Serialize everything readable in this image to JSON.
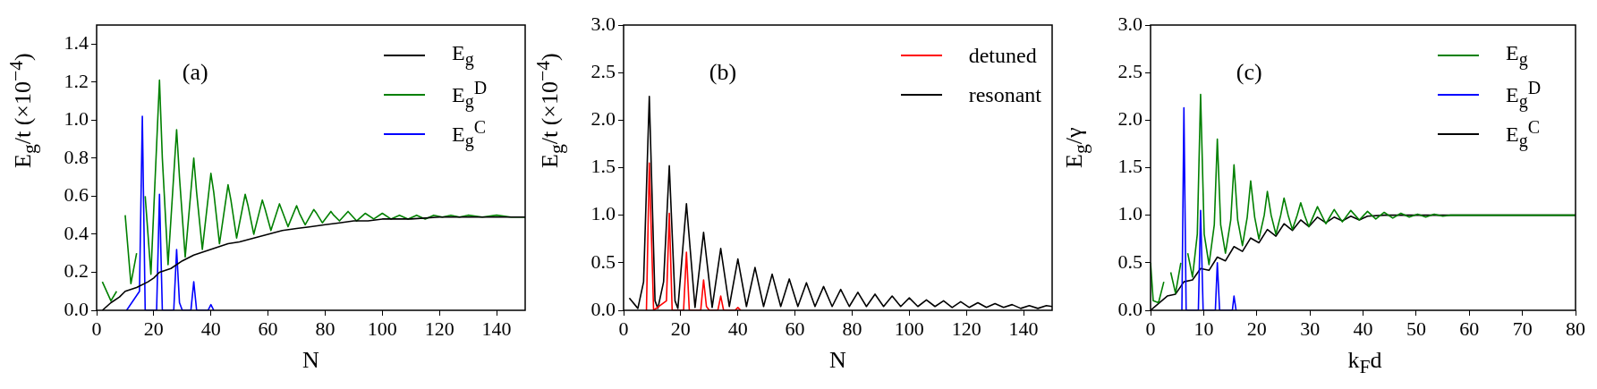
{
  "chart_data": [
    {
      "type": "line",
      "xlabel": "N",
      "ylabel": "E$_{g}$/t (×10$^{−4}$)",
      "xlim": [
        0,
        150
      ],
      "xticks": [
        0,
        20,
        40,
        60,
        80,
        100,
        120,
        140
      ],
      "ylim": [
        0,
        1.5
      ],
      "yticks": [
        {
          "value": 0,
          "label": "0.0"
        },
        {
          "value": 0.2,
          "label": "0.2"
        },
        {
          "value": 0.4,
          "label": "0.4"
        },
        {
          "value": 0.6,
          "label": "0.6"
        },
        {
          "value": 0.8,
          "label": "0.8"
        },
        {
          "value": 1,
          "label": "1.0"
        },
        {
          "value": 1.2,
          "label": "1.2"
        },
        {
          "value": 1.4,
          "label": "1.4"
        }
      ],
      "legend": "top right",
      "annotations": [
        "(a)"
      ],
      "series": [
        {
          "name": "E$_{g}$",
          "color": "#000000",
          "x": [
            2,
            5,
            8,
            10,
            14,
            18,
            20,
            22,
            26,
            30,
            34,
            38,
            42,
            46,
            50,
            55,
            60,
            65,
            70,
            75,
            80,
            85,
            90,
            95,
            100,
            110,
            120,
            130,
            140,
            150
          ],
          "values": [
            0,
            0.04,
            0.07,
            0.1,
            0.12,
            0.15,
            0.17,
            0.2,
            0.22,
            0.26,
            0.29,
            0.31,
            0.33,
            0.35,
            0.36,
            0.38,
            0.4,
            0.42,
            0.43,
            0.44,
            0.45,
            0.46,
            0.47,
            0.47,
            0.48,
            0.48,
            0.49,
            0.49,
            0.49,
            0.49
          ]
        },
        {
          "name": "E$_{g}$$^{D}$",
          "color": "#008000",
          "x": [
            2,
            5,
            7,
            9,
            10,
            12,
            14,
            16,
            17,
            19,
            22,
            23,
            25,
            28,
            29,
            31,
            34,
            35,
            37,
            40,
            41,
            43,
            46,
            47,
            49,
            52,
            53,
            55,
            58,
            59,
            61,
            64,
            65,
            67,
            70,
            71,
            73,
            76,
            77,
            79,
            82,
            83,
            85,
            88,
            91,
            94,
            97,
            100,
            103,
            106,
            109,
            112,
            115,
            118,
            121,
            124,
            127,
            130,
            135,
            140,
            145,
            150
          ],
          "values": [
            0.15,
            0.05,
            0.1,
            null,
            0.5,
            0.14,
            0.3,
            null,
            0.6,
            0.19,
            1.21,
            0.8,
            0.24,
            0.95,
            0.7,
            0.28,
            0.8,
            0.62,
            0.32,
            0.72,
            0.62,
            0.35,
            0.66,
            0.58,
            0.38,
            0.61,
            0.55,
            0.4,
            0.58,
            0.53,
            0.42,
            0.56,
            0.52,
            0.44,
            0.55,
            0.51,
            0.45,
            0.53,
            0.51,
            0.46,
            0.52,
            0.5,
            0.47,
            0.52,
            0.47,
            0.51,
            0.48,
            0.51,
            0.48,
            0.5,
            0.48,
            0.5,
            0.48,
            0.5,
            0.49,
            0.5,
            0.49,
            0.5,
            0.49,
            0.5,
            0.49,
            0.49
          ]
        },
        {
          "name": "E$_{g}$$^{C}$",
          "color": "#0000ff",
          "x": [
            10.5,
            15,
            16,
            17,
            21,
            22,
            23,
            27,
            28,
            29,
            30,
            33,
            34,
            35,
            39,
            40,
            41
          ],
          "values": [
            0,
            0.1,
            1.02,
            0,
            0,
            0.61,
            0,
            0,
            0.32,
            0.04,
            0,
            0,
            0.15,
            0,
            0,
            0.03,
            0
          ]
        }
      ]
    },
    {
      "type": "line",
      "xlabel": "N",
      "ylabel": "E$_{g}$/t (×10$^{−4}$)",
      "xlim": [
        0,
        150
      ],
      "xticks": [
        0,
        20,
        40,
        60,
        80,
        100,
        120,
        140
      ],
      "ylim": [
        0,
        3
      ],
      "yticks": [
        {
          "value": 0,
          "label": "0.0"
        },
        {
          "value": 0.5,
          "label": "0.5"
        },
        {
          "value": 1,
          "label": "1.0"
        },
        {
          "value": 1.5,
          "label": "1.5"
        },
        {
          "value": 2,
          "label": "2.0"
        },
        {
          "value": 2.5,
          "label": "2.5"
        },
        {
          "value": 3,
          "label": "3.0"
        }
      ],
      "legend": "top right",
      "annotations": [
        "(b)"
      ],
      "series": [
        {
          "name": "detuned",
          "color": "#ff0000",
          "x": [
            8,
            9,
            10.5,
            15,
            16,
            17,
            21,
            22,
            23,
            27,
            28,
            29,
            30,
            33,
            34,
            35,
            39,
            40,
            41
          ],
          "values": [
            0,
            1.55,
            0,
            0.1,
            1.02,
            0,
            0,
            0.61,
            0,
            0,
            0.32,
            0.04,
            0,
            0,
            0.15,
            0,
            0,
            0.03,
            0
          ]
        },
        {
          "name": "resonant",
          "color": "#000000",
          "x": [
            2,
            5,
            7,
            9,
            11,
            12,
            14,
            16,
            18,
            19,
            22,
            25,
            28,
            31,
            34,
            37,
            40,
            43,
            46,
            49,
            52,
            55,
            58,
            61,
            64,
            67,
            70,
            73,
            76,
            79,
            82,
            85,
            88,
            91,
            94,
            97,
            100,
            103,
            106,
            109,
            112,
            115,
            118,
            121,
            124,
            127,
            130,
            133,
            136,
            139,
            142,
            145,
            148,
            150
          ],
          "values": [
            0.13,
            0.02,
            0.3,
            2.25,
            0.1,
            0.02,
            0.3,
            1.52,
            0.1,
            0.02,
            1.12,
            0.03,
            0.82,
            0.03,
            0.65,
            0.04,
            0.54,
            0.04,
            0.45,
            0.04,
            0.38,
            0.04,
            0.33,
            0.04,
            0.29,
            0.04,
            0.25,
            0.04,
            0.22,
            0.04,
            0.19,
            0.04,
            0.17,
            0.04,
            0.15,
            0.04,
            0.13,
            0.04,
            0.11,
            0.04,
            0.1,
            0.03,
            0.09,
            0.03,
            0.08,
            0.03,
            0.07,
            0.03,
            0.06,
            0.02,
            0.05,
            0.02,
            0.05,
            0.04
          ]
        }
      ]
    },
    {
      "type": "line",
      "xlabel": "k$_{F}$d",
      "ylabel": "E$_{g}$/γ",
      "xlim": [
        0,
        80
      ],
      "xticks": [
        0,
        10,
        20,
        30,
        40,
        50,
        60,
        70,
        80
      ],
      "ylim": [
        0,
        3
      ],
      "yticks": [
        {
          "value": 0,
          "label": "0.0"
        },
        {
          "value": 0.5,
          "label": "0.5"
        },
        {
          "value": 1,
          "label": "1.0"
        },
        {
          "value": 1.5,
          "label": "1.5"
        },
        {
          "value": 2,
          "label": "2.0"
        },
        {
          "value": 2.5,
          "label": "2.5"
        },
        {
          "value": 3,
          "label": "3.0"
        }
      ],
      "legend": "top right",
      "annotations": [
        "(c)"
      ],
      "series": [
        {
          "name": "E$_{g}$",
          "color": "#008000",
          "x": [
            0,
            0.5,
            1.5,
            2.5,
            3.14,
            3.8,
            4.7,
            5.7,
            6.28,
            7,
            7.9,
            8.8,
            9.42,
            10.1,
            11,
            12,
            12.57,
            13.2,
            14.1,
            15.1,
            15.71,
            16.4,
            17.3,
            18.2,
            18.85,
            19.6,
            20.4,
            21.4,
            21.99,
            22.7,
            23.6,
            24.5,
            25.13,
            25.9,
            26.7,
            27.6,
            28.27,
            29,
            29.8,
            31.42,
            33,
            34.56,
            36.1,
            37.7,
            39.3,
            40.84,
            42.4,
            43.98,
            45.6,
            47.12,
            48.7,
            50.27,
            51.8,
            53.4,
            55,
            56.5,
            60,
            80
          ],
          "values": [
            0.5,
            0.1,
            0.08,
            0.3,
            null,
            0.4,
            0.18,
            0.5,
            null,
            0.6,
            0.35,
            0.8,
            2.27,
            0.8,
            0.48,
            0.9,
            1.8,
            0.9,
            0.6,
            0.95,
            1.53,
            0.95,
            0.68,
            0.98,
            1.36,
            0.98,
            0.75,
            1,
            1.25,
            1,
            0.8,
            1,
            1.18,
            1,
            0.85,
            1,
            1.13,
            1,
            0.88,
            1.09,
            0.91,
            1.06,
            0.93,
            1.05,
            0.95,
            1.04,
            0.96,
            1.03,
            0.97,
            1.02,
            0.98,
            1.01,
            0.98,
            1.01,
            0.99,
            1,
            1,
            1
          ]
        },
        {
          "name": "E$_{g}$$^{D}$",
          "color": "#0000ff",
          "x": [
            5.9,
            6.28,
            6.7,
            9,
            9.42,
            9.9,
            12.2,
            12.57,
            13,
            15.4,
            15.71,
            16.1
          ],
          "values": [
            0,
            2.13,
            0,
            0,
            1.05,
            0,
            0,
            0.5,
            0,
            0,
            0.15,
            0
          ]
        },
        {
          "name": "E$_{g}$$^{C}$",
          "color": "#000000",
          "x": [
            0,
            3.14,
            4.7,
            6.28,
            7.9,
            9.42,
            11,
            12.57,
            14.1,
            15.71,
            17.3,
            18.85,
            20.4,
            21.99,
            23.6,
            25.13,
            26.7,
            28.27,
            29.8,
            31.42,
            33,
            34.56,
            36.1,
            37.7,
            39.3,
            40.84,
            44,
            50,
            60,
            80
          ],
          "values": [
            0,
            0.15,
            0.17,
            0.3,
            0.32,
            0.44,
            0.42,
            0.56,
            0.52,
            0.67,
            0.62,
            0.76,
            0.71,
            0.85,
            0.78,
            0.91,
            0.84,
            0.95,
            0.88,
            0.98,
            0.92,
            0.98,
            0.94,
            0.99,
            0.95,
            0.99,
            1,
            1,
            1,
            1
          ]
        }
      ]
    }
  ]
}
